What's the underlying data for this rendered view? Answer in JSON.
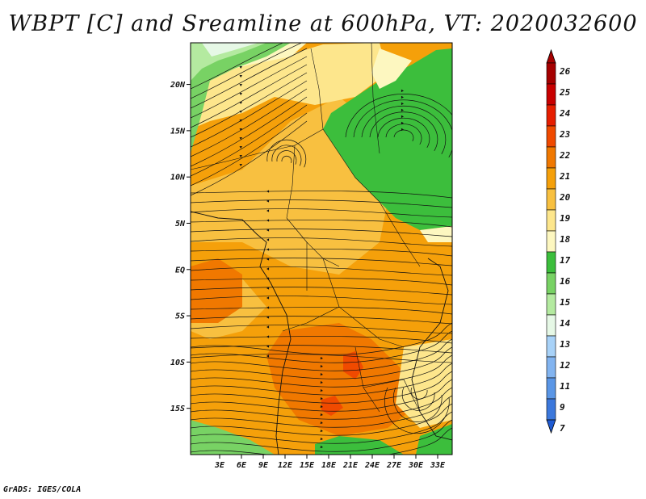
{
  "title": "WBPT [C] and Sreamline at 600hPa, VT: 2020032600",
  "credit": "GrADS: IGES/COLA",
  "map": {
    "lon_range": [
      -1,
      35
    ],
    "lat_range": [
      -20,
      24.5
    ],
    "lat_ticks": [
      {
        "value": 20,
        "label": "20N"
      },
      {
        "value": 15,
        "label": "15N"
      },
      {
        "value": 10,
        "label": "10N"
      },
      {
        "value": 5,
        "label": "5N"
      },
      {
        "value": 0,
        "label": "EQ"
      },
      {
        "value": -5,
        "label": "5S"
      },
      {
        "value": -10,
        "label": "10S"
      },
      {
        "value": -15,
        "label": "15S"
      }
    ],
    "lon_ticks": [
      {
        "value": 3,
        "label": "3E"
      },
      {
        "value": 6,
        "label": "6E"
      },
      {
        "value": 9,
        "label": "9E"
      },
      {
        "value": 12,
        "label": "12E"
      },
      {
        "value": 15,
        "label": "15E"
      },
      {
        "value": 18,
        "label": "18E"
      },
      {
        "value": 21,
        "label": "21E"
      },
      {
        "value": 24,
        "label": "24E"
      },
      {
        "value": 27,
        "label": "27E"
      },
      {
        "value": 30,
        "label": "30E"
      },
      {
        "value": 33,
        "label": "33E"
      }
    ]
  },
  "colorbar": {
    "levels": [
      {
        "label": "26",
        "color": "#a50000"
      },
      {
        "label": "25",
        "color": "#c80000"
      },
      {
        "label": "24",
        "color": "#e61e00"
      },
      {
        "label": "23",
        "color": "#f04a00"
      },
      {
        "label": "22",
        "color": "#f07800"
      },
      {
        "label": "21",
        "color": "#f5a00a"
      },
      {
        "label": "20",
        "color": "#f8c040"
      },
      {
        "label": "19",
        "color": "#fde68c"
      },
      {
        "label": "18",
        "color": "#fdf7c0"
      },
      {
        "label": "17",
        "color": "#3cbe3c"
      },
      {
        "label": "16",
        "color": "#78d264"
      },
      {
        "label": "15",
        "color": "#b4eaa0"
      },
      {
        "label": "14",
        "color": "#e6f8e6"
      },
      {
        "label": "13",
        "color": "#a8d2f8"
      },
      {
        "label": "12",
        "color": "#82b4f0"
      },
      {
        "label": "11",
        "color": "#5a96e6"
      },
      {
        "label": "9",
        "color": "#3c78dc"
      },
      {
        "label": "7",
        "color": "#1e5ad2"
      }
    ]
  }
}
